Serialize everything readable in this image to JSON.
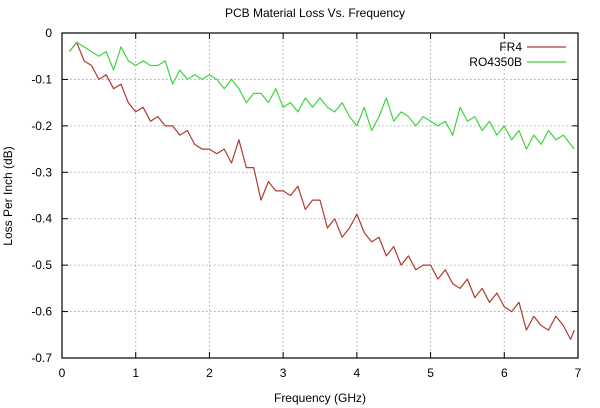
{
  "chart_data": {
    "type": "line",
    "title": "PCB Material Loss Vs. Frequency",
    "xlabel": "Frequency (GHz)",
    "ylabel": "Loss Per Inch (dB)",
    "xlim": [
      0,
      7
    ],
    "ylim": [
      -0.7,
      0
    ],
    "xticks": [
      "0",
      "1",
      "2",
      "3",
      "4",
      "5",
      "6",
      "7"
    ],
    "yticks": [
      "0",
      "-0.1",
      "-0.2",
      "-0.3",
      "-0.4",
      "-0.5",
      "-0.6",
      "-0.7"
    ],
    "grid": true,
    "legend_position": "top-right",
    "x": [
      0.1,
      0.2,
      0.3,
      0.4,
      0.5,
      0.6,
      0.7,
      0.8,
      0.9,
      1.0,
      1.1,
      1.2,
      1.3,
      1.4,
      1.5,
      1.6,
      1.7,
      1.8,
      1.9,
      2.0,
      2.1,
      2.2,
      2.3,
      2.4,
      2.5,
      2.6,
      2.7,
      2.8,
      2.9,
      3.0,
      3.1,
      3.2,
      3.3,
      3.4,
      3.5,
      3.6,
      3.7,
      3.8,
      3.9,
      4.0,
      4.1,
      4.2,
      4.3,
      4.4,
      4.5,
      4.6,
      4.7,
      4.8,
      4.9,
      5.0,
      5.1,
      5.2,
      5.3,
      5.4,
      5.5,
      5.6,
      5.7,
      5.8,
      5.9,
      6.0,
      6.1,
      6.2,
      6.3,
      6.4,
      6.5,
      6.6,
      6.7,
      6.8,
      6.9,
      6.95
    ],
    "series": [
      {
        "name": "FR4",
        "color": "#b03a2e",
        "values": [
          -0.04,
          -0.02,
          -0.06,
          -0.07,
          -0.1,
          -0.09,
          -0.12,
          -0.11,
          -0.15,
          -0.17,
          -0.16,
          -0.19,
          -0.18,
          -0.2,
          -0.2,
          -0.22,
          -0.21,
          -0.24,
          -0.25,
          -0.25,
          -0.26,
          -0.25,
          -0.28,
          -0.23,
          -0.29,
          -0.29,
          -0.36,
          -0.32,
          -0.34,
          -0.34,
          -0.35,
          -0.33,
          -0.38,
          -0.36,
          -0.36,
          -0.42,
          -0.4,
          -0.44,
          -0.42,
          -0.39,
          -0.43,
          -0.45,
          -0.44,
          -0.48,
          -0.46,
          -0.5,
          -0.48,
          -0.51,
          -0.5,
          -0.5,
          -0.53,
          -0.51,
          -0.54,
          -0.55,
          -0.53,
          -0.57,
          -0.55,
          -0.58,
          -0.56,
          -0.59,
          -0.6,
          -0.58,
          -0.64,
          -0.61,
          -0.63,
          -0.64,
          -0.61,
          -0.63,
          -0.66,
          -0.64
        ]
      },
      {
        "name": "RO4350B",
        "color": "#3fd43f",
        "values": [
          -0.04,
          -0.02,
          -0.03,
          -0.04,
          -0.05,
          -0.04,
          -0.08,
          -0.03,
          -0.06,
          -0.07,
          -0.06,
          -0.07,
          -0.07,
          -0.06,
          -0.11,
          -0.08,
          -0.1,
          -0.09,
          -0.1,
          -0.09,
          -0.1,
          -0.12,
          -0.1,
          -0.12,
          -0.15,
          -0.13,
          -0.13,
          -0.15,
          -0.12,
          -0.16,
          -0.15,
          -0.17,
          -0.14,
          -0.16,
          -0.14,
          -0.16,
          -0.17,
          -0.15,
          -0.18,
          -0.2,
          -0.16,
          -0.21,
          -0.18,
          -0.14,
          -0.19,
          -0.17,
          -0.18,
          -0.2,
          -0.18,
          -0.19,
          -0.2,
          -0.19,
          -0.22,
          -0.16,
          -0.19,
          -0.18,
          -0.21,
          -0.19,
          -0.22,
          -0.2,
          -0.23,
          -0.21,
          -0.25,
          -0.22,
          -0.24,
          -0.21,
          -0.23,
          -0.22,
          -0.24,
          -0.25
        ]
      }
    ]
  }
}
